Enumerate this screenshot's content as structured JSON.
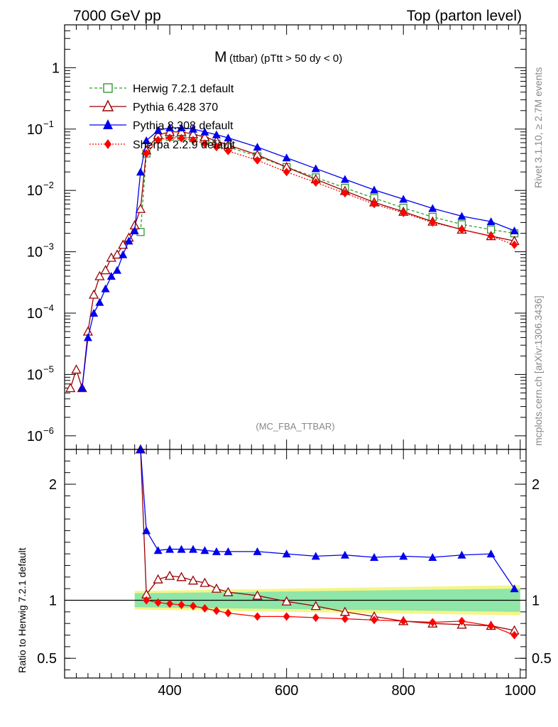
{
  "header": {
    "energy_label": "7000 GeV pp",
    "process_label": "Top (parton level)"
  },
  "side_labels": {
    "rivet": "Rivet 3.1.10, ≥ 2.7M events",
    "mcplots": "mcplots.cern.ch [arXiv:1306.3436]"
  },
  "analysis_tag": "(MC_FBA_TTBAR)",
  "chart_data": [
    {
      "type": "line",
      "title_main": "M",
      "title_sub": "(ttbar) (pTtt > 50 dy < 0)",
      "xlabel": "",
      "ylabel": "",
      "yscale": "log",
      "xlim": [
        220,
        1010
      ],
      "ylim": [
        6e-07,
        5
      ],
      "legend_position": "top-left",
      "y_ticks": [
        {
          "value": 1,
          "label": "1"
        },
        {
          "value": 0.1,
          "label": "10",
          "exp": "−1"
        },
        {
          "value": 0.01,
          "label": "10",
          "exp": "−2"
        },
        {
          "value": 0.001,
          "label": "10",
          "exp": "−3"
        },
        {
          "value": 0.0001,
          "label": "10",
          "exp": "−4"
        },
        {
          "value": 1e-05,
          "label": "10",
          "exp": "−5"
        },
        {
          "value": 1e-06,
          "label": "10",
          "exp": "−6"
        }
      ],
      "series": [
        {
          "name": "Herwig 7.2.1 default",
          "color": "#339933",
          "marker": "square-open",
          "dash": "4,3",
          "x": [
            350,
            360,
            380,
            400,
            420,
            440,
            460,
            480,
            500,
            550,
            600,
            650,
            700,
            750,
            800,
            850,
            900,
            950,
            990
          ],
          "y": [
            0.0021,
            0.04,
            0.068,
            0.075,
            0.075,
            0.071,
            0.064,
            0.058,
            0.051,
            0.036,
            0.024,
            0.0163,
            0.011,
            0.0075,
            0.0052,
            0.0037,
            0.0028,
            0.0023,
            0.002
          ]
        },
        {
          "name": "Pythia 6.428 370",
          "color": "#990000",
          "marker": "triangle-open",
          "dash": "",
          "x": [
            230,
            240,
            250,
            260,
            270,
            280,
            290,
            300,
            310,
            320,
            330,
            340,
            350,
            360,
            380,
            400,
            420,
            440,
            460,
            480,
            500,
            550,
            600,
            650,
            700,
            750,
            800,
            850,
            900,
            950,
            990
          ],
          "y": [
            6e-06,
            1.2e-05,
            6e-06,
            5e-05,
            0.0002,
            0.0004,
            0.0005,
            0.0008,
            0.0009,
            0.0013,
            0.0017,
            0.0027,
            0.005,
            0.045,
            0.08,
            0.09,
            0.09,
            0.083,
            0.074,
            0.064,
            0.055,
            0.038,
            0.024,
            0.0152,
            0.0098,
            0.0064,
            0.0045,
            0.0031,
            0.0023,
            0.0018,
            0.0015
          ]
        },
        {
          "name": "Pythia 8.308 default",
          "color": "#0000ee",
          "marker": "triangle-filled",
          "dash": "",
          "x": [
            250,
            260,
            270,
            280,
            290,
            300,
            310,
            320,
            330,
            340,
            350,
            360,
            380,
            400,
            420,
            440,
            460,
            480,
            500,
            550,
            600,
            650,
            700,
            750,
            800,
            850,
            900,
            950,
            990
          ],
          "y": [
            6e-06,
            4e-05,
            0.0001,
            0.00015,
            0.00025,
            0.0004,
            0.0005,
            0.0009,
            0.0015,
            0.0022,
            0.02,
            0.065,
            0.095,
            0.105,
            0.105,
            0.1,
            0.09,
            0.081,
            0.072,
            0.051,
            0.034,
            0.0227,
            0.0152,
            0.0102,
            0.0072,
            0.0051,
            0.0038,
            0.0031,
            0.0022
          ]
        },
        {
          "name": "Sherpa 2.2.9 default",
          "color": "#ff0000",
          "marker": "diamond-filled",
          "dash": "2,2",
          "x": [
            360,
            380,
            400,
            420,
            440,
            460,
            480,
            500,
            550,
            600,
            650,
            700,
            750,
            800,
            850,
            900,
            950,
            990
          ],
          "y": [
            0.04,
            0.066,
            0.072,
            0.071,
            0.066,
            0.058,
            0.051,
            0.044,
            0.031,
            0.02,
            0.0135,
            0.009,
            0.006,
            0.0043,
            0.003,
            0.0023,
            0.0018,
            0.0013
          ]
        }
      ]
    },
    {
      "type": "line",
      "title": "",
      "xlabel": "",
      "ylabel": "Ratio to Herwig 7.2.1 default",
      "xlim": [
        220,
        1010
      ],
      "ylim": [
        0.33,
        2.3
      ],
      "x_ticks": [
        400,
        600,
        800,
        1000
      ],
      "y_ticks": [
        {
          "value": 0.5,
          "label": "0.5"
        },
        {
          "value": 1,
          "label": "1"
        },
        {
          "value": 2,
          "label": "2"
        }
      ],
      "reference_line": 1,
      "uncertainty_band_x": [
        340,
        1000
      ],
      "uncertainty_band_inner_halfwidth": [
        0.06,
        0.1
      ],
      "uncertainty_band_outer_halfwidth": [
        0.08,
        0.13
      ],
      "series": [
        {
          "name": "Pythia 6.428 370",
          "color": "#990000",
          "x": [
            350,
            360,
            380,
            400,
            420,
            440,
            460,
            480,
            500,
            550,
            600,
            650,
            700,
            750,
            800,
            850,
            900,
            950,
            990
          ],
          "y": [
            2.4,
            1.05,
            1.18,
            1.21,
            1.2,
            1.17,
            1.15,
            1.1,
            1.07,
            1.04,
            0.99,
            0.95,
            0.9,
            0.86,
            0.82,
            0.8,
            0.79,
            0.78,
            0.74
          ]
        },
        {
          "name": "Pythia 8.308 default",
          "color": "#0000ee",
          "x": [
            350,
            360,
            380,
            400,
            420,
            440,
            460,
            480,
            500,
            550,
            600,
            650,
            700,
            750,
            800,
            850,
            900,
            950,
            990
          ],
          "y": [
            2.4,
            1.6,
            1.43,
            1.44,
            1.44,
            1.44,
            1.43,
            1.42,
            1.42,
            1.42,
            1.4,
            1.38,
            1.39,
            1.37,
            1.38,
            1.37,
            1.39,
            1.4,
            1.1
          ]
        },
        {
          "name": "Sherpa 2.2.9 default",
          "color": "#ff0000",
          "x": [
            360,
            380,
            400,
            420,
            440,
            460,
            480,
            500,
            550,
            600,
            650,
            700,
            750,
            800,
            850,
            900,
            950,
            990
          ],
          "y": [
            1.0,
            0.98,
            0.97,
            0.96,
            0.95,
            0.93,
            0.91,
            0.89,
            0.86,
            0.86,
            0.85,
            0.84,
            0.83,
            0.82,
            0.81,
            0.82,
            0.78,
            0.7
          ]
        }
      ]
    }
  ]
}
